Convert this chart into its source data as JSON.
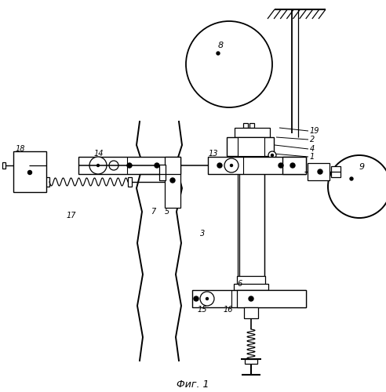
{
  "title": "Фиг. 1",
  "bg_color": "#ffffff",
  "fig_width": 4.92,
  "fig_height": 5.0,
  "dpi": 100
}
